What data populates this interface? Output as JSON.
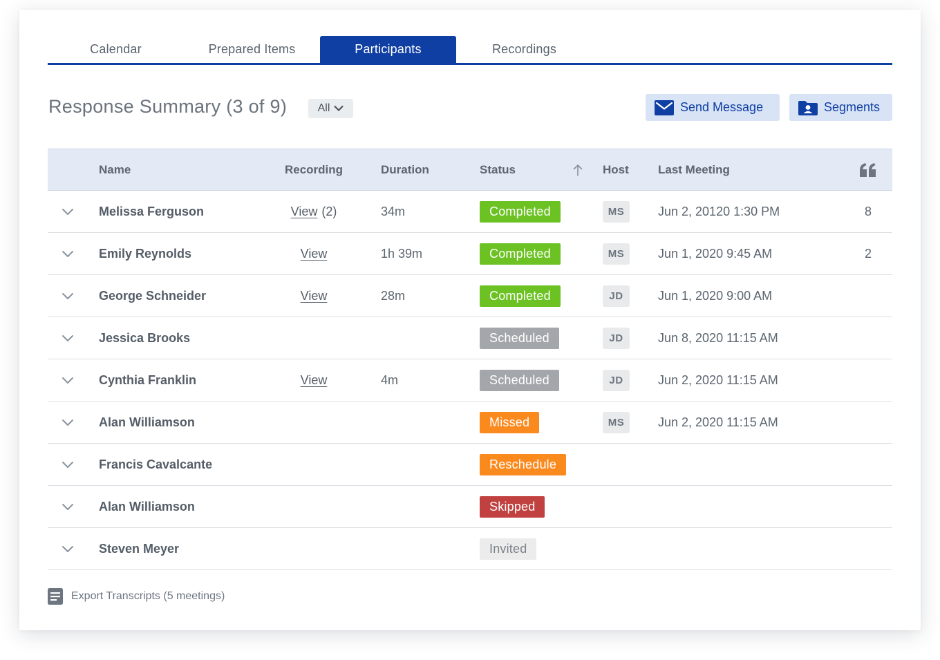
{
  "tabs": [
    {
      "label": "Calendar",
      "active": false
    },
    {
      "label": "Prepared Items",
      "active": false
    },
    {
      "label": "Participants",
      "active": true
    },
    {
      "label": "Recordings",
      "active": false
    }
  ],
  "summary": {
    "title": "Response Summary (3 of 9)",
    "filter_value": "All"
  },
  "actions": {
    "send_message": "Send Message",
    "segments": "Segments"
  },
  "table": {
    "columns": {
      "name": "Name",
      "recording": "Recording",
      "duration": "Duration",
      "status": "Status",
      "host": "Host",
      "last_meeting": "Last Meeting"
    },
    "quote_icon": "quote-icon",
    "sort_icon": "arrow-up-icon",
    "rows": [
      {
        "name": "Melissa Ferguson",
        "recording": "View",
        "recording_count": "(2)",
        "duration": "34m",
        "status": "Completed",
        "status_color": "#6cc223",
        "host": "MS",
        "last_meeting": "Jun 2, 20120 1:30 PM",
        "quotes": "8"
      },
      {
        "name": "Emily Reynolds",
        "recording": "View",
        "recording_count": "",
        "duration": "1h 39m",
        "status": "Completed",
        "status_color": "#6cc223",
        "host": "MS",
        "last_meeting": "Jun 1, 2020 9:45 AM",
        "quotes": "2"
      },
      {
        "name": "George Schneider",
        "recording": "View",
        "recording_count": "",
        "duration": "28m",
        "status": "Completed",
        "status_color": "#6cc223",
        "host": "JD",
        "last_meeting": "Jun 1, 2020 9:00 AM",
        "quotes": ""
      },
      {
        "name": "Jessica Brooks",
        "recording": "",
        "recording_count": "",
        "duration": "",
        "status": "Scheduled",
        "status_color": "#a3a6aa",
        "host": "JD",
        "last_meeting": "Jun 8, 2020 11:15 AM",
        "quotes": ""
      },
      {
        "name": "Cynthia Franklin",
        "recording": "View",
        "recording_count": "",
        "duration": "4m",
        "status": "Scheduled",
        "status_color": "#a3a6aa",
        "host": "JD",
        "last_meeting": "Jun 2, 2020 11:15 AM",
        "quotes": ""
      },
      {
        "name": "Alan Williamson",
        "recording": "",
        "recording_count": "",
        "duration": "",
        "status": "Missed",
        "status_color": "#fb8a1e",
        "host": "MS",
        "last_meeting": "Jun 2, 2020 11:15 AM",
        "quotes": ""
      },
      {
        "name": "Francis Cavalcante",
        "recording": "",
        "recording_count": "",
        "duration": "",
        "status": "Reschedule",
        "status_color": "#fb8a1e",
        "host": "",
        "last_meeting": "",
        "quotes": ""
      },
      {
        "name": "Alan Williamson",
        "recording": "",
        "recording_count": "",
        "duration": "",
        "status": "Skipped",
        "status_color": "#c0413f",
        "host": "",
        "last_meeting": "",
        "quotes": ""
      },
      {
        "name": "Steven Meyer",
        "recording": "",
        "recording_count": "",
        "duration": "",
        "status": "Invited",
        "status_color": "#ececec",
        "status_text_color": "#7a828b",
        "host": "",
        "last_meeting": "",
        "quotes": ""
      }
    ]
  },
  "footer": {
    "export_label": "Export Transcripts (5 meetings)"
  },
  "colors": {
    "accent": "#0f3fa3",
    "header_bg": "#e3e9f5",
    "button_bg": "#d8e3f6"
  }
}
